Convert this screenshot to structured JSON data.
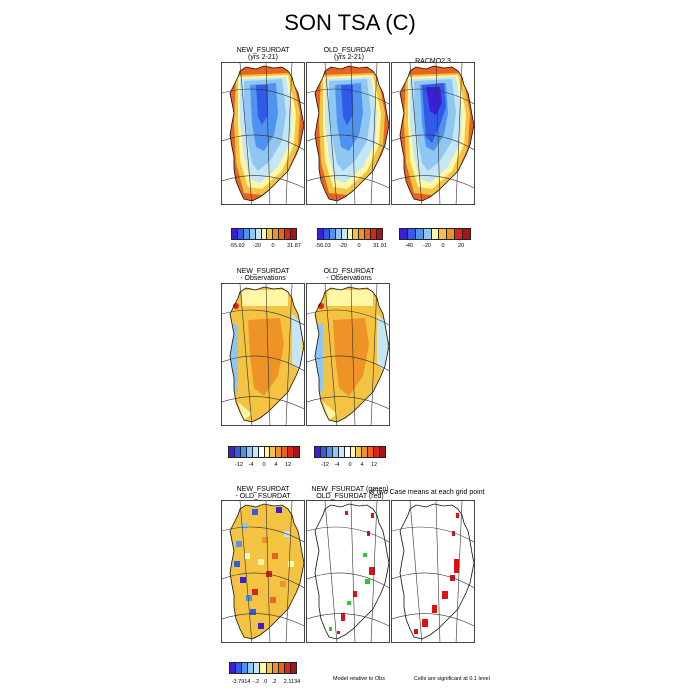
{
  "title": "SON TSA (C)",
  "rows": [
    {
      "panels": [
        {
          "title": "NEW_FSURDAT",
          "subtitle": "(yrs 2-21)",
          "kind": "abs"
        },
        {
          "title": "OLD_FSURDAT",
          "subtitle": "(yrs 2-21)",
          "kind": "abs"
        },
        {
          "title": "RACMO2.3",
          "subtitle": "",
          "kind": "obs"
        }
      ],
      "colorbars": [
        {
          "labels": [
            "-55.92",
            "-20",
            "0",
            "31.87"
          ]
        },
        {
          "labels": [
            "-56.03",
            "-20",
            "0",
            "31.91"
          ]
        },
        {
          "labels": [
            "-40",
            "-20",
            "0",
            "20"
          ]
        }
      ]
    },
    {
      "panels": [
        {
          "title": "NEW_FSURDAT",
          "subtitle": "- Observations",
          "kind": "bias"
        },
        {
          "title": "OLD_FSURDAT",
          "subtitle": "- Observations",
          "kind": "bias"
        }
      ],
      "colorbars": [
        {
          "labels": [
            "-12",
            "-4",
            "0",
            "4",
            "12"
          ]
        },
        {
          "labels": [
            "-12",
            "-4",
            "0",
            "4",
            "12"
          ]
        }
      ]
    },
    {
      "panels": [
        {
          "title": "NEW_FSURDAT",
          "subtitle": "- OLD_FSURDAT",
          "kind": "diff"
        },
        {
          "title": "NEW_FSURDAT (green)",
          "subtitle": "OLD_FSURDAT (red)",
          "kind": "sig1"
        },
        {
          "title": "",
          "subtitle": "",
          "kind": "sig2"
        }
      ],
      "overlap_text": "of two Case means at each grid point",
      "colorbars": [
        {
          "labels": [
            "-3.7914",
            "-.2",
            ".0",
            ".2",
            "2.1134"
          ]
        }
      ],
      "footnotes": [
        "Model relative to Obs",
        "Cells are significant at 0.1 level"
      ]
    }
  ],
  "colors": {
    "abs_scale": [
      "#3a1fd8",
      "#2f5be8",
      "#4f92ef",
      "#8fc7f2",
      "#c4e6f5",
      "#fff7a6",
      "#f5c342",
      "#ee9326",
      "#e8641f",
      "#d9261c",
      "#a8141a"
    ],
    "obs_scale": [
      "#3a1fd8",
      "#2f5be8",
      "#4f92ef",
      "#8fc7f2",
      "#fff7a6",
      "#f5c342",
      "#ee9326",
      "#d9261c",
      "#a8141a"
    ],
    "bias_scale": [
      "#3a1fd8",
      "#2f5be8",
      "#4f92ef",
      "#8fc7f2",
      "#c4e6f5",
      "#ffffff",
      "#fff7a6",
      "#f5c342",
      "#ee9326",
      "#e8641f",
      "#d9261c",
      "#a8141a"
    ],
    "diff_scale": [
      "#3a1fd8",
      "#2f5be8",
      "#4f92ef",
      "#8fc7f2",
      "#c4e6f5",
      "#fff7a6",
      "#f5c342",
      "#ee9326",
      "#e8641f",
      "#d9261c",
      "#a8141a"
    ],
    "sig_new": "#22cc22",
    "sig_old": "#dd1111"
  },
  "chart_data": [
    {
      "type": "heatmap",
      "title": "NEW_FSURDAT",
      "subtitle": "(yrs 2-21)",
      "colorbar_ticks": [
        -55.92,
        -20,
        0,
        31.87
      ]
    },
    {
      "type": "heatmap",
      "title": "OLD_FSURDAT",
      "subtitle": "(yrs 2-21)",
      "colorbar_ticks": [
        -56.03,
        -20,
        0,
        31.91
      ]
    },
    {
      "type": "heatmap",
      "title": "RACMO2.3",
      "colorbar_ticks": [
        -40,
        -20,
        0,
        20
      ]
    },
    {
      "type": "heatmap",
      "title": "NEW_FSURDAT",
      "subtitle": "- Observations",
      "colorbar_ticks": [
        -12,
        -4,
        0,
        4,
        12
      ]
    },
    {
      "type": "heatmap",
      "title": "OLD_FSURDAT",
      "subtitle": "- Observations",
      "colorbar_ticks": [
        -12,
        -4,
        0,
        4,
        12
      ]
    },
    {
      "type": "heatmap",
      "title": "NEW_FSURDAT",
      "subtitle": "- OLD_FSURDAT",
      "colorbar_ticks": [
        -3.7914,
        -0.2,
        0.0,
        0.2,
        2.1134
      ]
    }
  ]
}
